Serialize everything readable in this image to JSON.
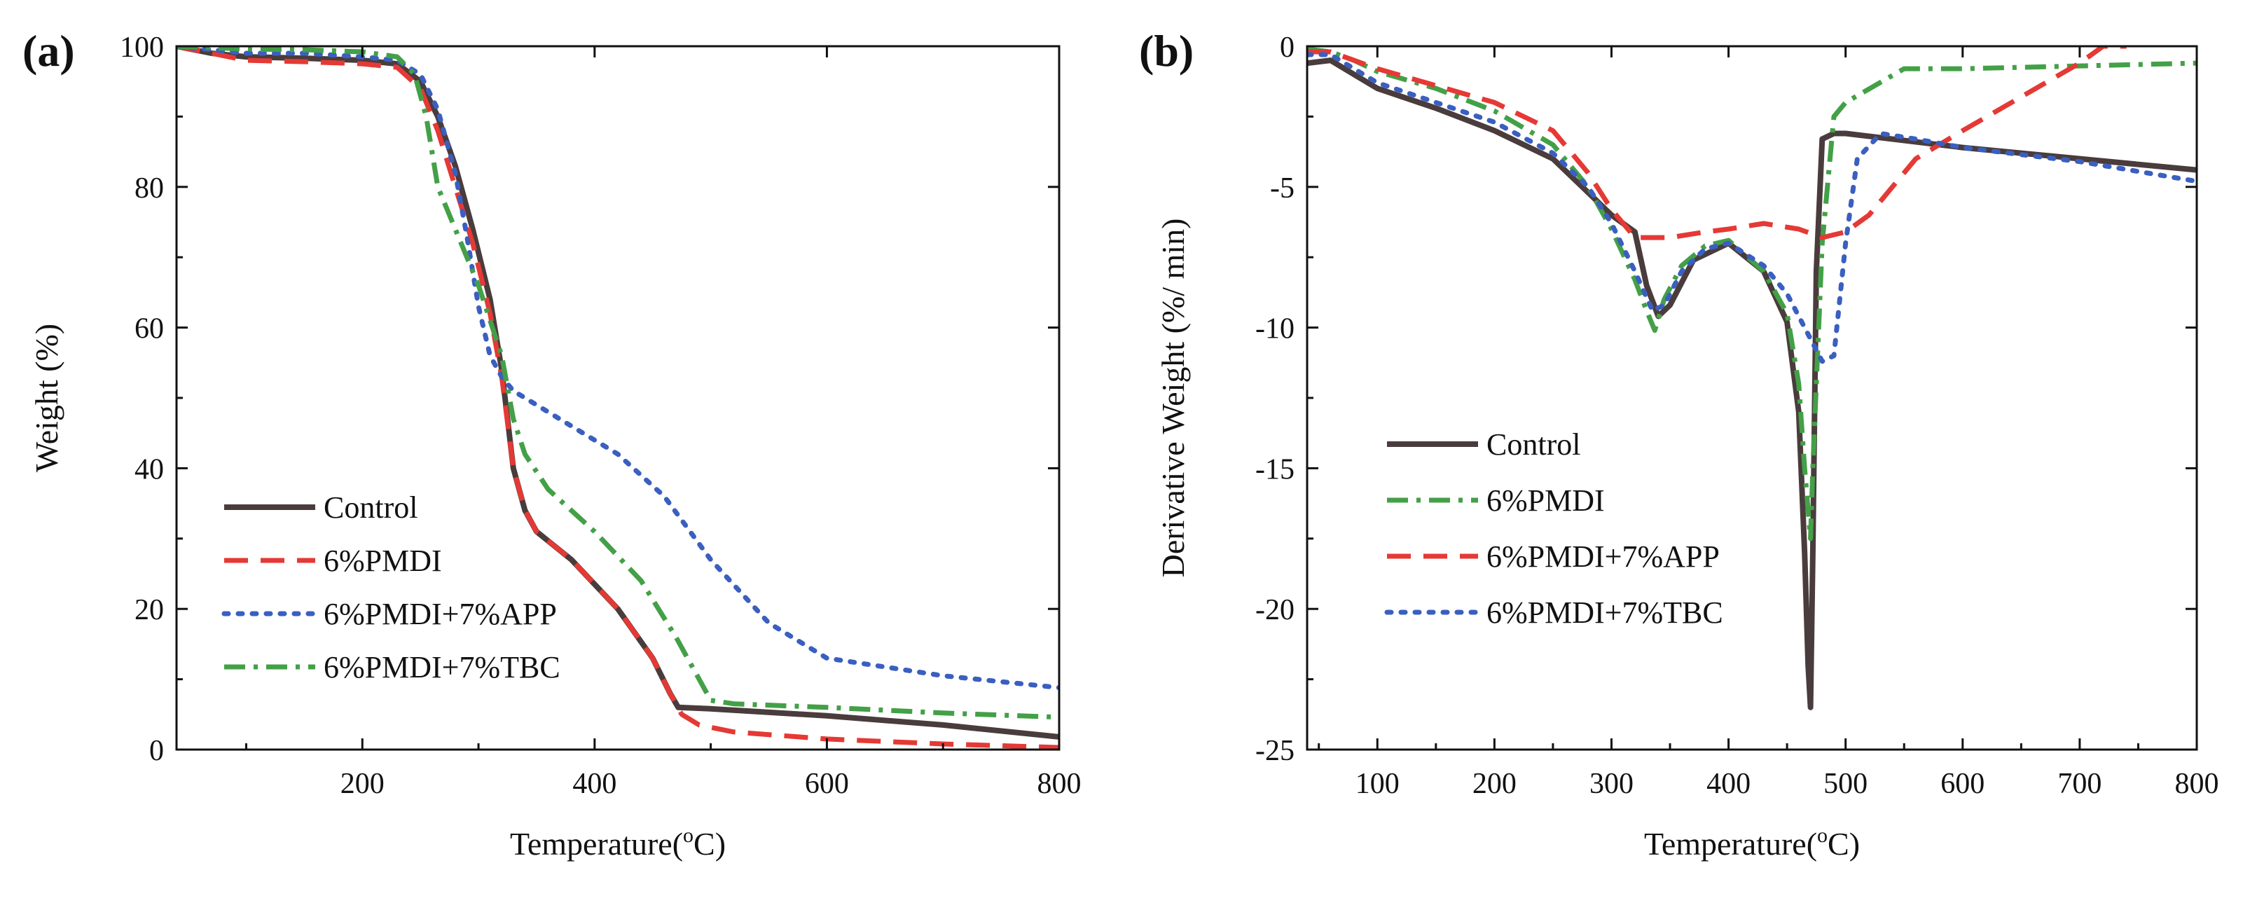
{
  "chart_data": [
    {
      "type": "line",
      "panel": "(a)",
      "xlabel": "Temperature(",
      "xlabel_sup": "o",
      "xlabel_end": "C)",
      "ylabel": "Weight  (%)",
      "xlim": [
        40,
        800
      ],
      "ylim": [
        0,
        100
      ],
      "xticks": [
        200,
        400,
        600,
        800
      ],
      "yticks": [
        0,
        20,
        40,
        60,
        80,
        100
      ],
      "legend_position": "bottom-left",
      "series": [
        {
          "name": "Control",
          "color": "#4a3c3c",
          "dash": "solid",
          "x": [
            40,
            70,
            100,
            150,
            200,
            230,
            250,
            265,
            280,
            295,
            310,
            320,
            330,
            340,
            350,
            380,
            420,
            450,
            465,
            472,
            500,
            600,
            700,
            800
          ],
          "y": [
            100,
            99,
            98.5,
            98.3,
            98,
            97.5,
            95,
            90,
            83,
            74,
            64,
            54,
            40,
            34,
            31,
            27,
            20,
            13,
            8,
            6,
            5.8,
            4.8,
            3.5,
            1.8
          ]
        },
        {
          "name": "6%PMDI",
          "color": "#e53935",
          "dash": "dashed",
          "x": [
            40,
            70,
            100,
            150,
            200,
            230,
            250,
            265,
            280,
            295,
            310,
            320,
            330,
            340,
            350,
            380,
            420,
            450,
            465,
            475,
            490,
            520,
            600,
            700,
            800
          ],
          "y": [
            100,
            99,
            98,
            97.8,
            97.5,
            97,
            94,
            88,
            80,
            72,
            62,
            53,
            40,
            34,
            31,
            27,
            20,
            13,
            8,
            5,
            3.5,
            2.5,
            1.5,
            0.8,
            0.3
          ]
        },
        {
          "name": "6%PMDI+7%APP",
          "color": "#3a5fc0",
          "dash": "dotted",
          "x": [
            40,
            70,
            100,
            150,
            200,
            230,
            250,
            265,
            280,
            290,
            300,
            310,
            320,
            330,
            340,
            380,
            420,
            460,
            500,
            550,
            600,
            700,
            800
          ],
          "y": [
            100,
            99.5,
            99,
            99,
            98.5,
            98,
            96,
            91,
            82,
            73,
            63,
            56,
            53,
            51,
            50,
            46,
            42,
            36,
            27,
            18,
            13,
            10.5,
            8.8
          ]
        },
        {
          "name": "6%PMDI+7%TBC",
          "color": "#43a047",
          "dash": "dashdot",
          "x": [
            40,
            70,
            100,
            150,
            200,
            230,
            245,
            255,
            265,
            280,
            300,
            320,
            330,
            340,
            360,
            400,
            440,
            470,
            490,
            500,
            520,
            600,
            700,
            800
          ],
          "y": [
            100,
            99.8,
            99.6,
            99.5,
            99.2,
            98.5,
            96,
            90,
            80,
            74,
            66,
            56,
            47,
            42,
            37,
            31,
            24,
            16,
            10,
            7,
            6.5,
            6,
            5.2,
            4.6
          ]
        }
      ]
    },
    {
      "type": "line",
      "panel": "(b)",
      "xlabel": "Temperature(",
      "xlabel_sup": "o",
      "xlabel_end": "C)",
      "ylabel": "Derivative Weight  (%/ min)",
      "xlim": [
        40,
        800
      ],
      "ylim": [
        -25,
        0
      ],
      "xticks": [
        100,
        200,
        300,
        400,
        500,
        600,
        700,
        800
      ],
      "yticks": [
        0,
        -5,
        -10,
        -15,
        -20,
        -25
      ],
      "legend_position": "bottom-left",
      "series": [
        {
          "name": "Control",
          "color": "#4a3c3c",
          "dash": "solid",
          "x": [
            40,
            60,
            80,
            100,
            150,
            200,
            250,
            280,
            300,
            320,
            330,
            340,
            350,
            370,
            400,
            430,
            450,
            460,
            465,
            468,
            470,
            472,
            475,
            480,
            490,
            500,
            600,
            700,
            800
          ],
          "y": [
            -0.6,
            -0.5,
            -1.0,
            -1.5,
            -2.2,
            -3.0,
            -4.0,
            -5.2,
            -6.0,
            -6.6,
            -8.5,
            -9.6,
            -9.2,
            -7.6,
            -7.0,
            -8.0,
            -9.8,
            -13,
            -18,
            -22,
            -23.5,
            -18,
            -8,
            -3.3,
            -3.1,
            -3.1,
            -3.6,
            -4.0,
            -4.4
          ]
        },
        {
          "name": "6%PMDI",
          "color": "#43a047",
          "dash": "dashdot",
          "x": [
            40,
            60,
            80,
            100,
            150,
            200,
            250,
            280,
            300,
            320,
            330,
            337,
            345,
            360,
            380,
            400,
            430,
            450,
            460,
            465,
            470,
            472,
            480,
            490,
            500,
            550,
            600,
            700,
            800
          ],
          "y": [
            -0.1,
            -0.2,
            -0.5,
            -0.9,
            -1.5,
            -2.3,
            -3.5,
            -5.0,
            -6.5,
            -8.3,
            -9.4,
            -10.1,
            -9.0,
            -7.8,
            -7.1,
            -6.9,
            -8.0,
            -9.5,
            -12,
            -15,
            -17.5,
            -15,
            -7.0,
            -2.5,
            -2.0,
            -0.8,
            -0.8,
            -0.7,
            -0.6
          ]
        },
        {
          "name": "6%PMDI+7%APP",
          "color": "#e53935",
          "dash": "dashed",
          "x": [
            40,
            60,
            80,
            100,
            150,
            200,
            250,
            280,
            300,
            320,
            350,
            380,
            400,
            430,
            460,
            480,
            500,
            520,
            560,
            600,
            650,
            700,
            720,
            740
          ],
          "y": [
            -0.2,
            -0.2,
            -0.5,
            -0.8,
            -1.4,
            -2.0,
            -3.0,
            -4.5,
            -5.8,
            -6.8,
            -6.8,
            -6.6,
            -6.5,
            -6.3,
            -6.5,
            -6.8,
            -6.6,
            -6.0,
            -4.0,
            -3.0,
            -1.8,
            -0.6,
            0,
            0
          ]
        },
        {
          "name": "6%PMDI+7%TBC",
          "color": "#3a5fc0",
          "dash": "dotted",
          "x": [
            40,
            60,
            80,
            100,
            150,
            200,
            250,
            280,
            300,
            320,
            335,
            345,
            360,
            380,
            400,
            430,
            450,
            465,
            475,
            480,
            490,
            500,
            510,
            530,
            560,
            600,
            700,
            800
          ],
          "y": [
            -0.3,
            -0.3,
            -0.8,
            -1.3,
            -2.0,
            -2.7,
            -3.8,
            -5.0,
            -6.3,
            -8.0,
            -9.4,
            -9.2,
            -8.0,
            -7.2,
            -7.0,
            -7.8,
            -8.8,
            -10.0,
            -10.8,
            -11.2,
            -11.0,
            -7.0,
            -4.0,
            -3.1,
            -3.3,
            -3.6,
            -4.1,
            -4.8
          ]
        }
      ]
    }
  ]
}
